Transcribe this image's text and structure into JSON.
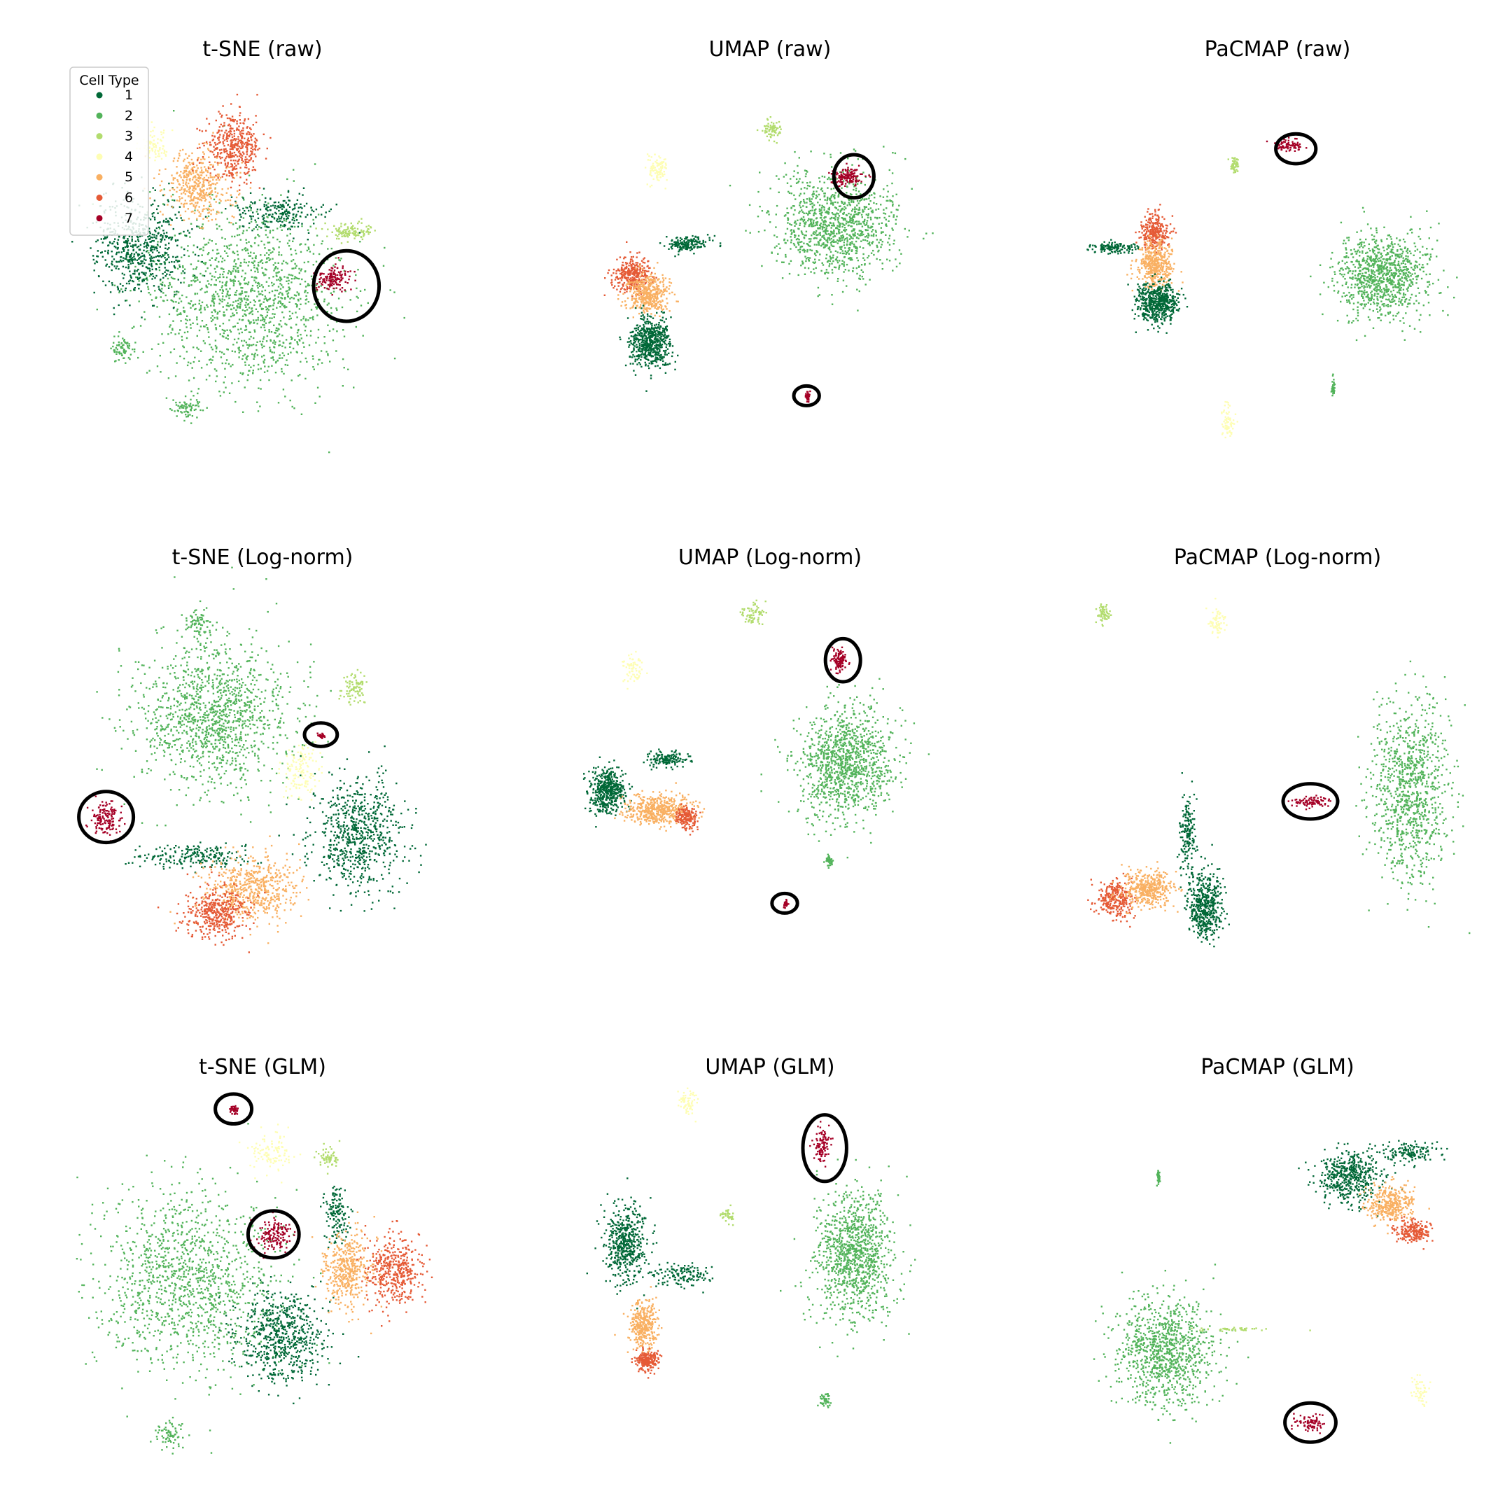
{
  "figure": {
    "legend": {
      "title": "Cell Type",
      "placement": "upper-left of first panel"
    }
  },
  "palette": {
    "1": "#006837",
    "2": "#52b35a",
    "3": "#b2dc6e",
    "4": "#fefeb4",
    "5": "#f9b062",
    "6": "#e55a36",
    "7": "#a50026"
  },
  "chart_data": [
    {
      "type": "scatter",
      "title": "t-SNE    (raw)",
      "method": "t-SNE",
      "normalization": "raw",
      "axes_visible": false,
      "grid": false,
      "legend": true,
      "categories": [
        "1",
        "2",
        "3",
        "4",
        "5",
        "6",
        "7"
      ],
      "clusters": [
        {
          "cell_type": "2",
          "x": 0.47,
          "y": 0.59,
          "spread_x": 0.28,
          "spread_y": 0.24,
          "density": 1.0
        },
        {
          "cell_type": "2",
          "x": 0.12,
          "y": 0.72,
          "spread_x": 0.03,
          "spread_y": 0.04,
          "density": 0.05
        },
        {
          "cell_type": "2",
          "x": 0.3,
          "y": 0.87,
          "spread_x": 0.04,
          "spread_y": 0.03,
          "density": 0.05
        },
        {
          "cell_type": "1",
          "x": 0.17,
          "y": 0.46,
          "spread_x": 0.13,
          "spread_y": 0.13,
          "density": 0.45
        },
        {
          "cell_type": "1",
          "x": 0.55,
          "y": 0.37,
          "spread_x": 0.13,
          "spread_y": 0.05,
          "density": 0.15
        },
        {
          "cell_type": "5",
          "x": 0.33,
          "y": 0.3,
          "spread_x": 0.1,
          "spread_y": 0.09,
          "density": 0.3
        },
        {
          "cell_type": "6",
          "x": 0.43,
          "y": 0.2,
          "spread_x": 0.08,
          "spread_y": 0.08,
          "density": 0.3
        },
        {
          "cell_type": "3",
          "x": 0.75,
          "y": 0.42,
          "spread_x": 0.06,
          "spread_y": 0.02,
          "density": 0.08
        },
        {
          "cell_type": "4",
          "x": 0.21,
          "y": 0.2,
          "spread_x": 0.04,
          "spread_y": 0.04,
          "density": 0.06
        },
        {
          "cell_type": "7",
          "x": 0.7,
          "y": 0.54,
          "spread_x": 0.05,
          "spread_y": 0.035,
          "density": 0.1
        }
      ],
      "highlights": [
        {
          "x": 0.74,
          "y": 0.56,
          "rx": 0.09,
          "ry": 0.09
        }
      ]
    },
    {
      "type": "scatter",
      "title": "UMAP    (raw)",
      "method": "UMAP",
      "normalization": "raw",
      "axes_visible": false,
      "grid": false,
      "legend": false,
      "categories": [
        "1",
        "2",
        "3",
        "4",
        "5",
        "6",
        "7"
      ],
      "clusters": [
        {
          "cell_type": "2",
          "x": 0.69,
          "y": 0.4,
          "spread_x": 0.17,
          "spread_y": 0.14,
          "density": 0.8
        },
        {
          "cell_type": "3",
          "x": 0.51,
          "y": 0.16,
          "spread_x": 0.025,
          "spread_y": 0.025,
          "density": 0.05
        },
        {
          "cell_type": "4",
          "x": 0.2,
          "y": 0.26,
          "spread_x": 0.025,
          "spread_y": 0.04,
          "density": 0.07
        },
        {
          "cell_type": "6",
          "x": 0.13,
          "y": 0.53,
          "spread_x": 0.05,
          "spread_y": 0.05,
          "density": 0.25
        },
        {
          "cell_type": "5",
          "x": 0.17,
          "y": 0.58,
          "spread_x": 0.06,
          "spread_y": 0.05,
          "density": 0.3
        },
        {
          "cell_type": "1",
          "x": 0.18,
          "y": 0.7,
          "spread_x": 0.06,
          "spread_y": 0.07,
          "density": 0.4
        },
        {
          "cell_type": "1",
          "x": 0.28,
          "y": 0.45,
          "spread_x": 0.06,
          "spread_y": 0.02,
          "density": 0.12
        },
        {
          "cell_type": "7",
          "x": 0.72,
          "y": 0.28,
          "spread_x": 0.04,
          "spread_y": 0.025,
          "density": 0.1
        },
        {
          "cell_type": "7",
          "x": 0.61,
          "y": 0.84,
          "spread_x": 0.006,
          "spread_y": 0.01,
          "density": 0.02
        }
      ],
      "highlights": [
        {
          "x": 0.74,
          "y": 0.28,
          "rx": 0.055,
          "ry": 0.055
        },
        {
          "x": 0.61,
          "y": 0.84,
          "rx": 0.035,
          "ry": 0.025
        }
      ]
    },
    {
      "type": "scatter",
      "title": "PaCMAP    (raw)",
      "method": "PaCMAP",
      "normalization": "raw",
      "axes_visible": false,
      "grid": false,
      "legend": false,
      "categories": [
        "1",
        "2",
        "3",
        "4",
        "5",
        "6",
        "7"
      ],
      "clusters": [
        {
          "cell_type": "2",
          "x": 0.8,
          "y": 0.53,
          "spread_x": 0.13,
          "spread_y": 0.11,
          "density": 0.7
        },
        {
          "cell_type": "3",
          "x": 0.39,
          "y": 0.25,
          "spread_x": 0.012,
          "spread_y": 0.02,
          "density": 0.04
        },
        {
          "cell_type": "7",
          "x": 0.54,
          "y": 0.2,
          "spread_x": 0.04,
          "spread_y": 0.015,
          "density": 0.06
        },
        {
          "cell_type": "6",
          "x": 0.17,
          "y": 0.42,
          "spread_x": 0.04,
          "spread_y": 0.05,
          "density": 0.2
        },
        {
          "cell_type": "5",
          "x": 0.17,
          "y": 0.5,
          "spread_x": 0.05,
          "spread_y": 0.06,
          "density": 0.3
        },
        {
          "cell_type": "1",
          "x": 0.18,
          "y": 0.6,
          "spread_x": 0.06,
          "spread_y": 0.05,
          "density": 0.4
        },
        {
          "cell_type": "1",
          "x": 0.06,
          "y": 0.46,
          "spread_x": 0.07,
          "spread_y": 0.015,
          "density": 0.1
        },
        {
          "cell_type": "4",
          "x": 0.37,
          "y": 0.9,
          "spread_x": 0.02,
          "spread_y": 0.04,
          "density": 0.05
        },
        {
          "cell_type": "2",
          "x": 0.66,
          "y": 0.82,
          "spread_x": 0.004,
          "spread_y": 0.025,
          "density": 0.02
        }
      ],
      "highlights": [
        {
          "x": 0.56,
          "y": 0.21,
          "rx": 0.055,
          "ry": 0.038
        }
      ]
    },
    {
      "type": "scatter",
      "title": "t-SNE    (Log-norm)",
      "method": "t-SNE",
      "normalization": "Log-norm",
      "axes_visible": false,
      "grid": false,
      "legend": false,
      "categories": [
        "1",
        "2",
        "3",
        "4",
        "5",
        "6",
        "7"
      ],
      "clusters": [
        {
          "cell_type": "2",
          "x": 0.38,
          "y": 0.36,
          "spread_x": 0.22,
          "spread_y": 0.2,
          "density": 0.9
        },
        {
          "cell_type": "2",
          "x": 0.33,
          "y": 0.12,
          "spread_x": 0.03,
          "spread_y": 0.03,
          "density": 0.05
        },
        {
          "cell_type": "3",
          "x": 0.76,
          "y": 0.29,
          "spread_x": 0.04,
          "spread_y": 0.05,
          "density": 0.06
        },
        {
          "cell_type": "4",
          "x": 0.61,
          "y": 0.5,
          "spread_x": 0.05,
          "spread_y": 0.07,
          "density": 0.1
        },
        {
          "cell_type": "1",
          "x": 0.77,
          "y": 0.66,
          "spread_x": 0.13,
          "spread_y": 0.15,
          "density": 0.5
        },
        {
          "cell_type": "1",
          "x": 0.33,
          "y": 0.72,
          "spread_x": 0.16,
          "spread_y": 0.03,
          "density": 0.15
        },
        {
          "cell_type": "5",
          "x": 0.48,
          "y": 0.8,
          "spread_x": 0.13,
          "spread_y": 0.09,
          "density": 0.4
        },
        {
          "cell_type": "6",
          "x": 0.38,
          "y": 0.86,
          "spread_x": 0.09,
          "spread_y": 0.07,
          "density": 0.3
        },
        {
          "cell_type": "7",
          "x": 0.08,
          "y": 0.62,
          "spread_x": 0.045,
          "spread_y": 0.045,
          "density": 0.1
        },
        {
          "cell_type": "7",
          "x": 0.67,
          "y": 0.41,
          "spread_x": 0.012,
          "spread_y": 0.005,
          "density": 0.02
        }
      ],
      "highlights": [
        {
          "x": 0.08,
          "y": 0.62,
          "rx": 0.075,
          "ry": 0.065
        },
        {
          "x": 0.67,
          "y": 0.41,
          "rx": 0.045,
          "ry": 0.03
        }
      ]
    },
    {
      "type": "scatter",
      "title": "UMAP    (Log-norm)",
      "method": "UMAP",
      "normalization": "Log-norm",
      "axes_visible": false,
      "grid": false,
      "legend": false,
      "categories": [
        "1",
        "2",
        "3",
        "4",
        "5",
        "6",
        "7"
      ],
      "clusters": [
        {
          "cell_type": "2",
          "x": 0.72,
          "y": 0.48,
          "spread_x": 0.14,
          "spread_y": 0.15,
          "density": 0.8
        },
        {
          "cell_type": "2",
          "x": 0.67,
          "y": 0.73,
          "spread_x": 0.01,
          "spread_y": 0.012,
          "density": 0.02
        },
        {
          "cell_type": "3",
          "x": 0.46,
          "y": 0.1,
          "spread_x": 0.03,
          "spread_y": 0.025,
          "density": 0.05
        },
        {
          "cell_type": "4",
          "x": 0.13,
          "y": 0.24,
          "spread_x": 0.03,
          "spread_y": 0.035,
          "density": 0.05
        },
        {
          "cell_type": "1",
          "x": 0.06,
          "y": 0.55,
          "spread_x": 0.05,
          "spread_y": 0.06,
          "density": 0.35
        },
        {
          "cell_type": "5",
          "x": 0.2,
          "y": 0.6,
          "spread_x": 0.1,
          "spread_y": 0.04,
          "density": 0.35
        },
        {
          "cell_type": "6",
          "x": 0.28,
          "y": 0.62,
          "spread_x": 0.03,
          "spread_y": 0.03,
          "density": 0.12
        },
        {
          "cell_type": "1",
          "x": 0.23,
          "y": 0.47,
          "spread_x": 0.06,
          "spread_y": 0.02,
          "density": 0.1
        },
        {
          "cell_type": "7",
          "x": 0.7,
          "y": 0.22,
          "spread_x": 0.025,
          "spread_y": 0.03,
          "density": 0.08
        },
        {
          "cell_type": "7",
          "x": 0.55,
          "y": 0.84,
          "spread_x": 0.006,
          "spread_y": 0.008,
          "density": 0.02
        }
      ],
      "highlights": [
        {
          "x": 0.71,
          "y": 0.22,
          "rx": 0.048,
          "ry": 0.055
        },
        {
          "x": 0.55,
          "y": 0.84,
          "rx": 0.035,
          "ry": 0.025
        }
      ]
    },
    {
      "type": "scatter",
      "title": "PaCMAP    (Log-norm)",
      "method": "PaCMAP",
      "normalization": "Log-norm",
      "axes_visible": false,
      "grid": false,
      "legend": false,
      "categories": [
        "1",
        "2",
        "3",
        "4",
        "5",
        "6",
        "7"
      ],
      "clusters": [
        {
          "cell_type": "2",
          "x": 0.87,
          "y": 0.55,
          "spread_x": 0.11,
          "spread_y": 0.24,
          "density": 0.7
        },
        {
          "cell_type": "3",
          "x": 0.03,
          "y": 0.1,
          "spread_x": 0.02,
          "spread_y": 0.025,
          "density": 0.04
        },
        {
          "cell_type": "4",
          "x": 0.34,
          "y": 0.12,
          "spread_x": 0.025,
          "spread_y": 0.04,
          "density": 0.05
        },
        {
          "cell_type": "1",
          "x": 0.26,
          "y": 0.66,
          "spread_x": 0.025,
          "spread_y": 0.11,
          "density": 0.12
        },
        {
          "cell_type": "6",
          "x": 0.06,
          "y": 0.83,
          "spread_x": 0.05,
          "spread_y": 0.05,
          "density": 0.2
        },
        {
          "cell_type": "5",
          "x": 0.15,
          "y": 0.8,
          "spread_x": 0.07,
          "spread_y": 0.05,
          "density": 0.3
        },
        {
          "cell_type": "1",
          "x": 0.31,
          "y": 0.84,
          "spread_x": 0.05,
          "spread_y": 0.09,
          "density": 0.35
        },
        {
          "cell_type": "7",
          "x": 0.6,
          "y": 0.58,
          "spread_x": 0.05,
          "spread_y": 0.015,
          "density": 0.06
        }
      ],
      "highlights": [
        {
          "x": 0.6,
          "y": 0.58,
          "rx": 0.075,
          "ry": 0.045
        }
      ]
    },
    {
      "type": "scatter",
      "title": "t-SNE    (GLM)",
      "method": "t-SNE",
      "normalization": "GLM",
      "axes_visible": false,
      "grid": false,
      "legend": false,
      "categories": [
        "1",
        "2",
        "3",
        "4",
        "5",
        "6",
        "7"
      ],
      "clusters": [
        {
          "cell_type": "2",
          "x": 0.3,
          "y": 0.5,
          "spread_x": 0.25,
          "spread_y": 0.25,
          "density": 0.9
        },
        {
          "cell_type": "2",
          "x": 0.25,
          "y": 0.9,
          "spread_x": 0.05,
          "spread_y": 0.04,
          "density": 0.05
        },
        {
          "cell_type": "4",
          "x": 0.53,
          "y": 0.18,
          "spread_x": 0.06,
          "spread_y": 0.05,
          "density": 0.08
        },
        {
          "cell_type": "3",
          "x": 0.69,
          "y": 0.19,
          "spread_x": 0.03,
          "spread_y": 0.03,
          "density": 0.04
        },
        {
          "cell_type": "1",
          "x": 0.56,
          "y": 0.65,
          "spread_x": 0.12,
          "spread_y": 0.12,
          "density": 0.45
        },
        {
          "cell_type": "1",
          "x": 0.71,
          "y": 0.34,
          "spread_x": 0.04,
          "spread_y": 0.07,
          "density": 0.1
        },
        {
          "cell_type": "5",
          "x": 0.74,
          "y": 0.48,
          "spread_x": 0.07,
          "spread_y": 0.1,
          "density": 0.3
        },
        {
          "cell_type": "6",
          "x": 0.87,
          "y": 0.48,
          "spread_x": 0.08,
          "spread_y": 0.09,
          "density": 0.3
        },
        {
          "cell_type": "7",
          "x": 0.54,
          "y": 0.39,
          "spread_x": 0.045,
          "spread_y": 0.04,
          "density": 0.1
        },
        {
          "cell_type": "7",
          "x": 0.43,
          "y": 0.07,
          "spread_x": 0.01,
          "spread_y": 0.012,
          "density": 0.02
        }
      ],
      "highlights": [
        {
          "x": 0.54,
          "y": 0.39,
          "rx": 0.07,
          "ry": 0.06
        },
        {
          "x": 0.43,
          "y": 0.07,
          "rx": 0.05,
          "ry": 0.038
        }
      ]
    },
    {
      "type": "scatter",
      "title": "UMAP    (GLM)",
      "method": "UMAP",
      "normalization": "GLM",
      "axes_visible": false,
      "grid": false,
      "legend": false,
      "categories": [
        "1",
        "2",
        "3",
        "4",
        "5",
        "6",
        "7"
      ],
      "clusters": [
        {
          "cell_type": "2",
          "x": 0.74,
          "y": 0.44,
          "spread_x": 0.11,
          "spread_y": 0.17,
          "density": 0.75
        },
        {
          "cell_type": "2",
          "x": 0.66,
          "y": 0.81,
          "spread_x": 0.015,
          "spread_y": 0.02,
          "density": 0.03
        },
        {
          "cell_type": "4",
          "x": 0.28,
          "y": 0.05,
          "spread_x": 0.03,
          "spread_y": 0.035,
          "density": 0.05
        },
        {
          "cell_type": "3",
          "x": 0.39,
          "y": 0.34,
          "spread_x": 0.02,
          "spread_y": 0.02,
          "density": 0.03
        },
        {
          "cell_type": "1",
          "x": 0.11,
          "y": 0.41,
          "spread_x": 0.06,
          "spread_y": 0.1,
          "density": 0.35
        },
        {
          "cell_type": "1",
          "x": 0.27,
          "y": 0.49,
          "spread_x": 0.08,
          "spread_y": 0.03,
          "density": 0.1
        },
        {
          "cell_type": "5",
          "x": 0.16,
          "y": 0.62,
          "spread_x": 0.04,
          "spread_y": 0.07,
          "density": 0.25
        },
        {
          "cell_type": "6",
          "x": 0.17,
          "y": 0.71,
          "spread_x": 0.03,
          "spread_y": 0.03,
          "density": 0.15
        },
        {
          "cell_type": "7",
          "x": 0.65,
          "y": 0.16,
          "spread_x": 0.02,
          "spread_y": 0.045,
          "density": 0.07
        }
      ],
      "highlights": [
        {
          "x": 0.66,
          "y": 0.17,
          "rx": 0.06,
          "ry": 0.085
        }
      ]
    },
    {
      "type": "scatter",
      "title": "PaCMAP    (GLM)",
      "method": "PaCMAP",
      "normalization": "GLM",
      "axes_visible": false,
      "grid": false,
      "legend": false,
      "categories": [
        "1",
        "2",
        "3",
        "4",
        "5",
        "6",
        "7"
      ],
      "clusters": [
        {
          "cell_type": "2",
          "x": 0.2,
          "y": 0.68,
          "spread_x": 0.14,
          "spread_y": 0.14,
          "density": 0.7
        },
        {
          "cell_type": "3",
          "x": 0.39,
          "y": 0.63,
          "spread_x": 0.1,
          "spread_y": 0.004,
          "density": 0.03
        },
        {
          "cell_type": "1",
          "x": 0.71,
          "y": 0.24,
          "spread_x": 0.09,
          "spread_y": 0.07,
          "density": 0.35
        },
        {
          "cell_type": "1",
          "x": 0.87,
          "y": 0.18,
          "spread_x": 0.09,
          "spread_y": 0.03,
          "density": 0.1
        },
        {
          "cell_type": "5",
          "x": 0.82,
          "y": 0.31,
          "spread_x": 0.07,
          "spread_y": 0.05,
          "density": 0.25
        },
        {
          "cell_type": "6",
          "x": 0.88,
          "y": 0.38,
          "spread_x": 0.05,
          "spread_y": 0.03,
          "density": 0.15
        },
        {
          "cell_type": "4",
          "x": 0.9,
          "y": 0.79,
          "spread_x": 0.025,
          "spread_y": 0.035,
          "density": 0.04
        },
        {
          "cell_type": "7",
          "x": 0.6,
          "y": 0.87,
          "spread_x": 0.05,
          "spread_y": 0.02,
          "density": 0.06
        },
        {
          "cell_type": "2",
          "x": 0.18,
          "y": 0.24,
          "spread_x": 0.004,
          "spread_y": 0.02,
          "density": 0.01
        }
      ],
      "highlights": [
        {
          "x": 0.6,
          "y": 0.87,
          "rx": 0.07,
          "ry": 0.05
        }
      ]
    }
  ]
}
